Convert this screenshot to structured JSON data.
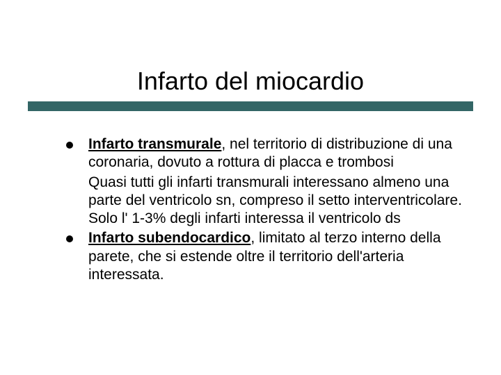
{
  "slide": {
    "title": "Infarto del miocardio",
    "title_fontsize": 36,
    "title_color": "#000000",
    "underline_color": "#336666",
    "background_color": "#ffffff",
    "body_fontsize": 21,
    "body_color": "#000000",
    "bullet_color": "#000000",
    "items": [
      {
        "bold_underlined": "Infarto transmurale",
        "rest": ", nel territorio di distribuzione di una coronaria, dovuto a rottura di placca e trombosi",
        "continuation": "Quasi tutti gli infarti transmurali interessano almeno una parte del ventricolo sn, compreso il setto interventricolare. Solo l' 1-3% degli infarti interessa il ventricolo ds"
      },
      {
        "bold_underlined": "Infarto subendocardico",
        "rest": ", limitato al terzo interno della parete, che si estende oltre il territorio dell'arteria interessata."
      }
    ]
  }
}
